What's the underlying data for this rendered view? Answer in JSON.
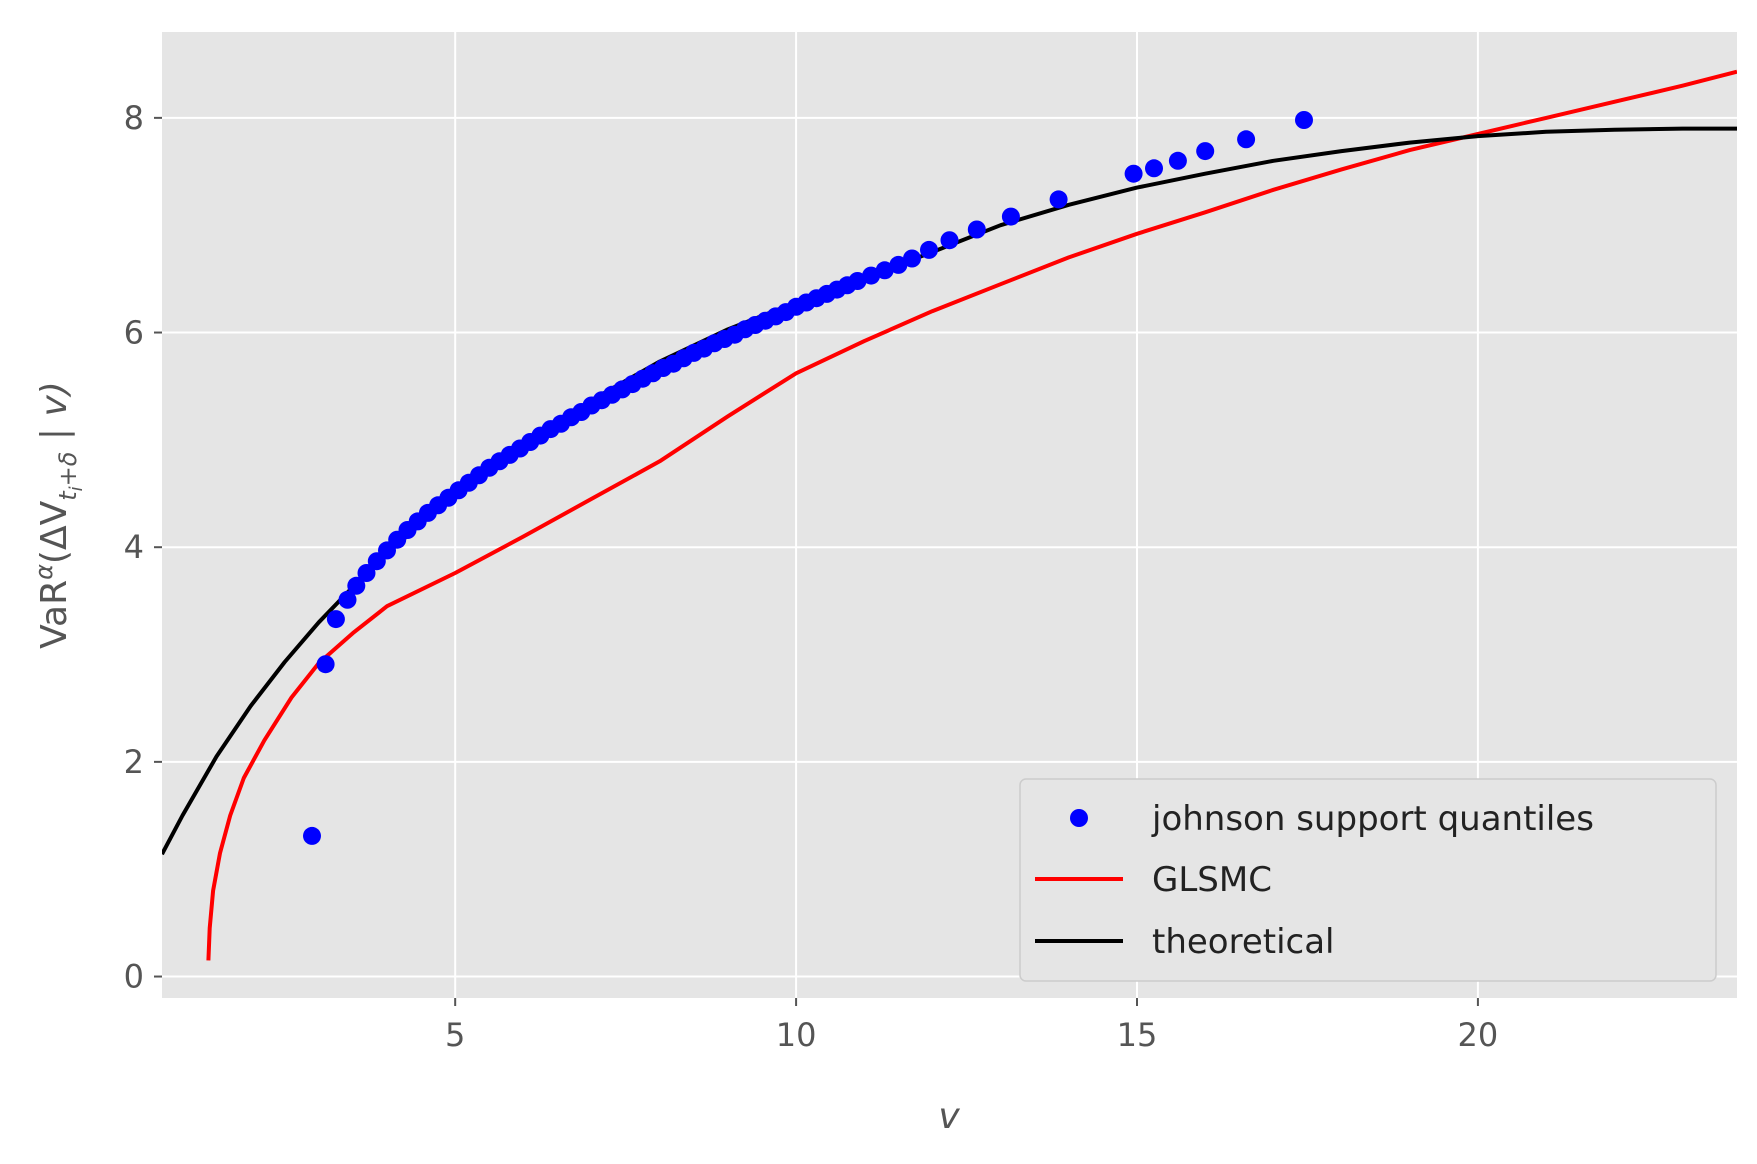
{
  "chart_data": {
    "type": "scatter",
    "xlabel": "v",
    "ylabel_parts": {
      "prefix": "VaR",
      "superscript": "α",
      "open": "(ΔV",
      "subscript_main": "t",
      "subscript_sub": "i",
      "subscript_rest": "+δ",
      "close": " | v)"
    },
    "xlim": [
      0.7,
      23.8
    ],
    "ylim": [
      -0.2,
      8.8
    ],
    "xticks": [
      5,
      10,
      15,
      20
    ],
    "yticks": [
      0,
      2,
      4,
      6,
      8
    ],
    "grid": true,
    "legend_position": "lower-right",
    "series": [
      {
        "name": "johnson support quantiles",
        "kind": "scatter",
        "color": "#0000ff",
        "points": [
          [
            2.9,
            1.31
          ],
          [
            3.1,
            2.91
          ],
          [
            3.25,
            3.33
          ],
          [
            3.42,
            3.51
          ],
          [
            3.55,
            3.64
          ],
          [
            3.7,
            3.76
          ],
          [
            3.85,
            3.87
          ],
          [
            4.0,
            3.97
          ],
          [
            4.15,
            4.07
          ],
          [
            4.3,
            4.16
          ],
          [
            4.45,
            4.24
          ],
          [
            4.6,
            4.32
          ],
          [
            4.75,
            4.39
          ],
          [
            4.9,
            4.46
          ],
          [
            5.05,
            4.53
          ],
          [
            5.2,
            4.6
          ],
          [
            5.35,
            4.67
          ],
          [
            5.5,
            4.74
          ],
          [
            5.65,
            4.8
          ],
          [
            5.8,
            4.86
          ],
          [
            5.95,
            4.92
          ],
          [
            6.1,
            4.98
          ],
          [
            6.25,
            5.04
          ],
          [
            6.4,
            5.1
          ],
          [
            6.55,
            5.15
          ],
          [
            6.7,
            5.21
          ],
          [
            6.85,
            5.26
          ],
          [
            7.0,
            5.32
          ],
          [
            7.15,
            5.37
          ],
          [
            7.3,
            5.42
          ],
          [
            7.45,
            5.47
          ],
          [
            7.6,
            5.52
          ],
          [
            7.75,
            5.57
          ],
          [
            7.9,
            5.62
          ],
          [
            8.05,
            5.67
          ],
          [
            8.2,
            5.71
          ],
          [
            8.35,
            5.76
          ],
          [
            8.5,
            5.81
          ],
          [
            8.65,
            5.85
          ],
          [
            8.8,
            5.9
          ],
          [
            8.95,
            5.94
          ],
          [
            9.1,
            5.98
          ],
          [
            9.25,
            6.03
          ],
          [
            9.4,
            6.07
          ],
          [
            9.55,
            6.11
          ],
          [
            9.7,
            6.15
          ],
          [
            9.85,
            6.19
          ],
          [
            10.0,
            6.24
          ],
          [
            10.15,
            6.28
          ],
          [
            10.3,
            6.32
          ],
          [
            10.45,
            6.36
          ],
          [
            10.6,
            6.4
          ],
          [
            10.75,
            6.44
          ],
          [
            10.9,
            6.48
          ],
          [
            11.1,
            6.53
          ],
          [
            11.3,
            6.58
          ],
          [
            11.5,
            6.63
          ],
          [
            11.7,
            6.69
          ],
          [
            11.95,
            6.77
          ],
          [
            12.25,
            6.86
          ],
          [
            12.65,
            6.96
          ],
          [
            13.15,
            7.08
          ],
          [
            13.85,
            7.24
          ],
          [
            14.95,
            7.48
          ],
          [
            15.25,
            7.53
          ],
          [
            15.6,
            7.6
          ],
          [
            16.0,
            7.69
          ],
          [
            16.6,
            7.8
          ],
          [
            17.45,
            7.98
          ]
        ]
      },
      {
        "name": "GLSMC",
        "kind": "line",
        "color": "#ff0000",
        "points": [
          [
            1.38,
            0.15
          ],
          [
            1.4,
            0.45
          ],
          [
            1.45,
            0.8
          ],
          [
            1.55,
            1.15
          ],
          [
            1.7,
            1.5
          ],
          [
            1.9,
            1.85
          ],
          [
            2.2,
            2.2
          ],
          [
            2.6,
            2.6
          ],
          [
            3.0,
            2.92
          ],
          [
            3.5,
            3.2
          ],
          [
            4.0,
            3.45
          ],
          [
            5.0,
            3.76
          ],
          [
            6.0,
            4.1
          ],
          [
            7.0,
            4.45
          ],
          [
            8.0,
            4.8
          ],
          [
            9.0,
            5.22
          ],
          [
            10.0,
            5.62
          ],
          [
            11.0,
            5.92
          ],
          [
            12.0,
            6.2
          ],
          [
            13.0,
            6.45
          ],
          [
            14.0,
            6.7
          ],
          [
            15.0,
            6.92
          ],
          [
            16.0,
            7.12
          ],
          [
            17.0,
            7.33
          ],
          [
            18.0,
            7.52
          ],
          [
            19.0,
            7.7
          ],
          [
            20.0,
            7.85
          ],
          [
            21.0,
            8.0
          ],
          [
            22.0,
            8.15
          ],
          [
            23.0,
            8.3
          ],
          [
            23.8,
            8.43
          ]
        ]
      },
      {
        "name": "theoretical",
        "kind": "line",
        "color": "#000000",
        "points": [
          [
            0.7,
            1.14
          ],
          [
            1.0,
            1.5
          ],
          [
            1.5,
            2.05
          ],
          [
            2.0,
            2.52
          ],
          [
            2.5,
            2.93
          ],
          [
            3.0,
            3.3
          ],
          [
            3.5,
            3.63
          ],
          [
            4.0,
            3.94
          ],
          [
            4.5,
            4.22
          ],
          [
            5.0,
            4.49
          ],
          [
            6.0,
            4.96
          ],
          [
            7.0,
            5.37
          ],
          [
            8.0,
            5.73
          ],
          [
            9.0,
            6.03
          ],
          [
            10.0,
            6.28
          ],
          [
            11.0,
            6.51
          ],
          [
            12.0,
            6.75
          ],
          [
            13.0,
            7.0
          ],
          [
            14.0,
            7.19
          ],
          [
            15.0,
            7.35
          ],
          [
            16.0,
            7.48
          ],
          [
            17.0,
            7.6
          ],
          [
            18.0,
            7.69
          ],
          [
            19.0,
            7.77
          ],
          [
            20.0,
            7.83
          ],
          [
            21.0,
            7.87
          ],
          [
            22.0,
            7.89
          ],
          [
            23.0,
            7.9
          ],
          [
            23.8,
            7.9
          ]
        ]
      }
    ]
  }
}
